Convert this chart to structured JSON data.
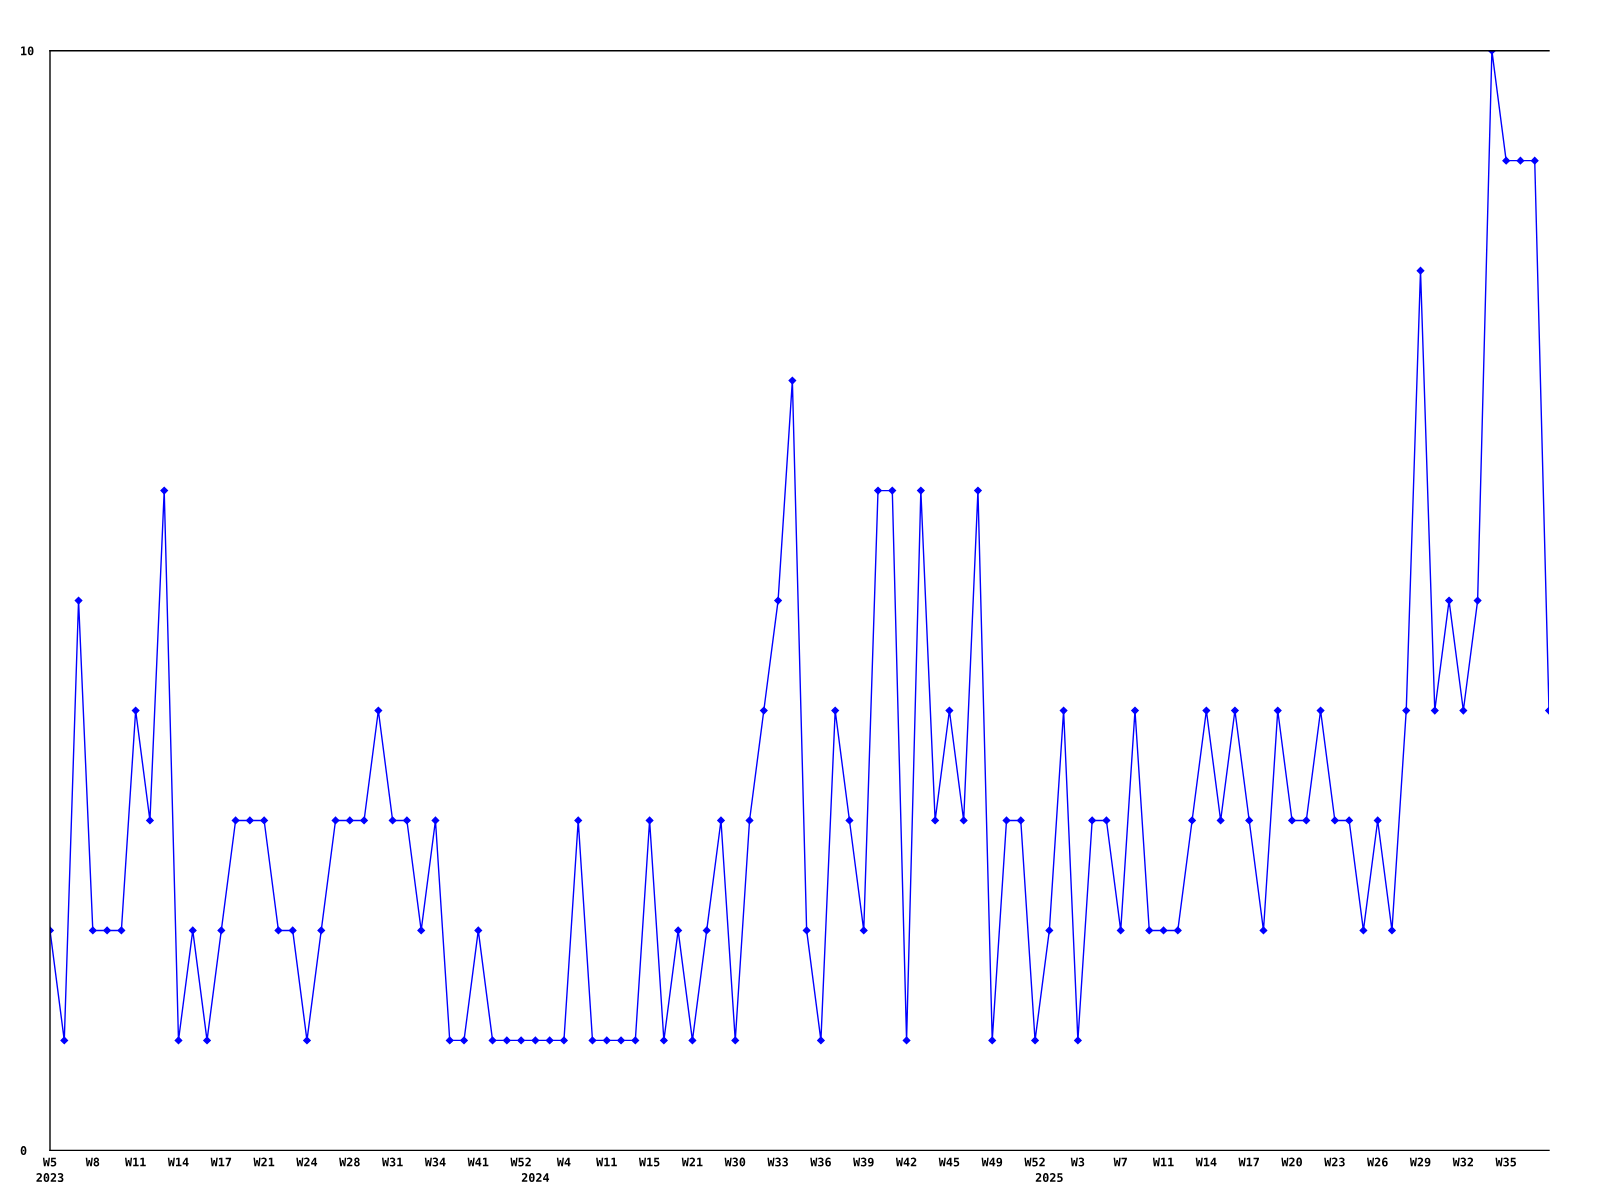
{
  "chart_data": {
    "type": "line",
    "categories": [
      "W5\n2023",
      null,
      null,
      "W8",
      null,
      null,
      "W11",
      null,
      null,
      "W14",
      null,
      null,
      "W17",
      null,
      null,
      "W21",
      null,
      null,
      "W24",
      null,
      null,
      "W28",
      null,
      null,
      "W31",
      null,
      null,
      "W34",
      null,
      null,
      "W41",
      null,
      null,
      "W52",
      "\n2024",
      null,
      "W4",
      null,
      null,
      "W11",
      null,
      null,
      "W15",
      null,
      null,
      "W21",
      null,
      null,
      "W30",
      null,
      null,
      "W33",
      null,
      null,
      "W36",
      null,
      null,
      "W39",
      null,
      null,
      "W42",
      null,
      null,
      "W45",
      null,
      null,
      "W49",
      null,
      null,
      "W52",
      "\n2025",
      null,
      "W3",
      null,
      null,
      "W7",
      null,
      null,
      "W11",
      null,
      null,
      "W14",
      null,
      null,
      "W17",
      null,
      null,
      "W20",
      null,
      null,
      "W23",
      null,
      null,
      "W26",
      null,
      null,
      "W29",
      null,
      null,
      "W32",
      null,
      null,
      "W35",
      null,
      null,
      null
    ],
    "series": [
      {
        "color": "#0000ff",
        "values": [
          2,
          1,
          5,
          2,
          2,
          2,
          4,
          3,
          6,
          1,
          2,
          1,
          2,
          3,
          3,
          3,
          2,
          2,
          1,
          2,
          3,
          3,
          3,
          4,
          3,
          3,
          2,
          3,
          1,
          1,
          2,
          1,
          1,
          1,
          1,
          1,
          1,
          3,
          1,
          1,
          1,
          1,
          3,
          1,
          2,
          1,
          2,
          3,
          1,
          3,
          4,
          5,
          7,
          2,
          1,
          4,
          3,
          2,
          6,
          6,
          1,
          6,
          3,
          4,
          3,
          6,
          1,
          3,
          3,
          1,
          2,
          4,
          1,
          3,
          3,
          2,
          4,
          2,
          2,
          2,
          3,
          4,
          3,
          4,
          3,
          2,
          4,
          3,
          3,
          4,
          3,
          3,
          2,
          3,
          2,
          4,
          8,
          4,
          5,
          4,
          5,
          10,
          9,
          9,
          9,
          4
        ]
      }
    ],
    "marker": "diamond",
    "line_style": "solid",
    "ylim": [
      0,
      10
    ],
    "yticks": [
      0,
      10
    ]
  }
}
